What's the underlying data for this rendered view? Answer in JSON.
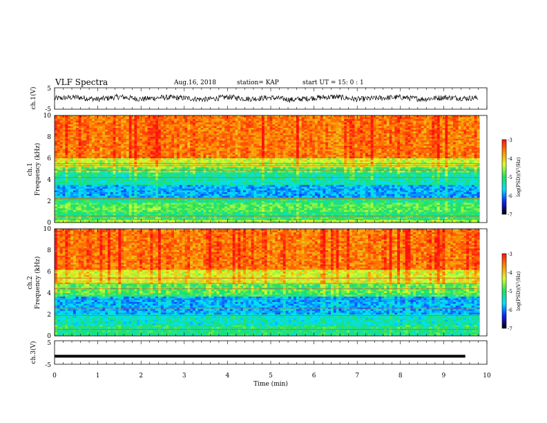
{
  "header": {
    "title": "VLF Spectra",
    "date": "Aug.16, 2018",
    "station": "station= KAP",
    "start": "start  UT =   15: 0  : 1"
  },
  "colors": {
    "colormap": [
      "#000000",
      "#1020ff",
      "#00e0ff",
      "#20e060",
      "#d8ff30",
      "#ff8c00",
      "#ff1010",
      "#ffffff"
    ]
  },
  "chart_data": [
    {
      "type": "line",
      "name": "ch1-waveform",
      "ylabel": "ch.1(V)",
      "ylim": [
        -5,
        5
      ],
      "yticks": [
        "5",
        "-5"
      ],
      "xlim": [
        0,
        10
      ],
      "x": [
        0.0,
        0.5,
        1.0,
        1.5,
        2.0,
        2.5,
        3.0,
        3.5,
        4.0,
        4.5,
        5.0,
        5.5,
        6.0,
        6.5,
        7.0,
        7.5,
        8.0,
        8.5,
        9.0,
        9.5,
        9.8
      ],
      "y": [
        0.0,
        0.6,
        -0.4,
        0.8,
        -0.3,
        0.5,
        0.2,
        -0.5,
        0.7,
        -0.2,
        0.4,
        -0.6,
        0.3,
        0.8,
        -0.4,
        0.2,
        0.6,
        -0.3,
        0.5,
        0.1,
        0.3
      ]
    },
    {
      "type": "heatmap",
      "name": "ch1-spectrogram",
      "ylabel": "ch.1\nFrequency (kHz)",
      "xlim": [
        0,
        10
      ],
      "ylim": [
        0,
        10
      ],
      "yticks": [
        "0",
        "2",
        "4",
        "6",
        "8",
        "10"
      ],
      "data_xmax": 9.83,
      "colorbar": {
        "label": "log(PSD)(V²/Hz)",
        "range": [
          -7,
          -3
        ],
        "ticks": [
          "-3",
          "-4",
          "-5",
          "-6",
          "-7"
        ]
      }
    },
    {
      "type": "heatmap",
      "name": "ch2-spectrogram",
      "ylabel": "ch.2\nFrequency (kHz)",
      "xlim": [
        0,
        10
      ],
      "ylim": [
        0,
        10
      ],
      "yticks": [
        "0",
        "2",
        "4",
        "6",
        "8",
        "10"
      ],
      "data_xmax": 9.83,
      "colorbar": {
        "label": "log(PSD)(V²/Hz)",
        "range": [
          -7,
          -3
        ],
        "ticks": [
          "-3",
          "-4",
          "-5",
          "-6",
          "-7"
        ]
      }
    },
    {
      "type": "line",
      "name": "ch3-waveform",
      "ylabel": "ch.3(V)",
      "ylim": [
        -5,
        5
      ],
      "yticks": [
        "5",
        "-5"
      ],
      "xlim": [
        0,
        10
      ],
      "x": [
        0.0,
        9.8
      ],
      "y": [
        -1.6,
        -1.6
      ]
    }
  ],
  "xaxis": {
    "label": "Time (min)",
    "ticks": [
      "0",
      "1",
      "2",
      "3",
      "4",
      "5",
      "6",
      "7",
      "8",
      "9",
      "10"
    ]
  }
}
